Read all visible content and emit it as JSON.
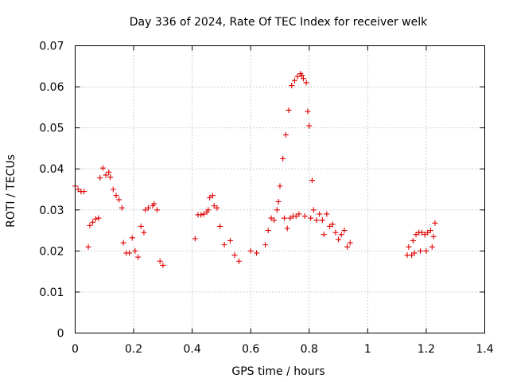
{
  "chart_data": {
    "type": "scatter",
    "title": "Day 336 of 2024, Rate Of TEC Index for receiver welk",
    "xlabel": "GPS time / hours",
    "ylabel": "ROTI / TECUs",
    "xlim": [
      0,
      1.4
    ],
    "ylim": [
      0,
      0.07
    ],
    "x_ticks": [
      "0",
      "0.2",
      "0.4",
      "0.6",
      "0.8",
      "1",
      "1.2",
      "1.4"
    ],
    "y_ticks": [
      "0",
      "0.01",
      "0.02",
      "0.03",
      "0.04",
      "0.05",
      "0.06",
      "0.07"
    ],
    "grid": true,
    "marker": "+",
    "color": "#e00000",
    "series": [
      {
        "points": [
          [
            0.0,
            0.0358
          ],
          [
            0.01,
            0.035
          ],
          [
            0.02,
            0.0345
          ],
          [
            0.03,
            0.0345
          ],
          [
            0.045,
            0.021
          ],
          [
            0.05,
            0.0262
          ],
          [
            0.06,
            0.027
          ],
          [
            0.07,
            0.0278
          ],
          [
            0.08,
            0.028
          ],
          [
            0.085,
            0.0378
          ],
          [
            0.095,
            0.0402
          ],
          [
            0.105,
            0.0385
          ],
          [
            0.115,
            0.0392
          ],
          [
            0.12,
            0.038
          ],
          [
            0.13,
            0.035
          ],
          [
            0.14,
            0.0335
          ],
          [
            0.15,
            0.0325
          ],
          [
            0.16,
            0.0305
          ],
          [
            0.165,
            0.022
          ],
          [
            0.175,
            0.0195
          ],
          [
            0.185,
            0.0195
          ],
          [
            0.195,
            0.0232
          ],
          [
            0.205,
            0.02
          ],
          [
            0.215,
            0.0185
          ],
          [
            0.225,
            0.026
          ],
          [
            0.235,
            0.0245
          ],
          [
            0.24,
            0.03
          ],
          [
            0.25,
            0.0305
          ],
          [
            0.265,
            0.031
          ],
          [
            0.27,
            0.0315
          ],
          [
            0.28,
            0.03
          ],
          [
            0.29,
            0.0175
          ],
          [
            0.3,
            0.0165
          ],
          [
            0.41,
            0.023
          ],
          [
            0.42,
            0.0288
          ],
          [
            0.43,
            0.0288
          ],
          [
            0.44,
            0.029
          ],
          [
            0.45,
            0.0295
          ],
          [
            0.455,
            0.03
          ],
          [
            0.46,
            0.033
          ],
          [
            0.47,
            0.0335
          ],
          [
            0.475,
            0.031
          ],
          [
            0.485,
            0.0305
          ],
          [
            0.495,
            0.026
          ],
          [
            0.51,
            0.0215
          ],
          [
            0.53,
            0.0225
          ],
          [
            0.545,
            0.019
          ],
          [
            0.56,
            0.0175
          ],
          [
            0.6,
            0.02
          ],
          [
            0.62,
            0.0195
          ],
          [
            0.65,
            0.0215
          ],
          [
            0.66,
            0.025
          ],
          [
            0.67,
            0.028
          ],
          [
            0.68,
            0.0275
          ],
          [
            0.69,
            0.03
          ],
          [
            0.695,
            0.032
          ],
          [
            0.7,
            0.0358
          ],
          [
            0.71,
            0.0425
          ],
          [
            0.715,
            0.028
          ],
          [
            0.72,
            0.0483
          ],
          [
            0.725,
            0.0255
          ],
          [
            0.73,
            0.0543
          ],
          [
            0.735,
            0.028
          ],
          [
            0.74,
            0.0603
          ],
          [
            0.745,
            0.0285
          ],
          [
            0.75,
            0.0615
          ],
          [
            0.755,
            0.0285
          ],
          [
            0.76,
            0.0625
          ],
          [
            0.765,
            0.029
          ],
          [
            0.77,
            0.0632
          ],
          [
            0.775,
            0.0628
          ],
          [
            0.78,
            0.062
          ],
          [
            0.785,
            0.0285
          ],
          [
            0.79,
            0.061
          ],
          [
            0.795,
            0.054
          ],
          [
            0.8,
            0.0505
          ],
          [
            0.805,
            0.028
          ],
          [
            0.81,
            0.0372
          ],
          [
            0.815,
            0.03
          ],
          [
            0.825,
            0.0275
          ],
          [
            0.835,
            0.029
          ],
          [
            0.845,
            0.0275
          ],
          [
            0.85,
            0.024
          ],
          [
            0.86,
            0.029
          ],
          [
            0.87,
            0.026
          ],
          [
            0.88,
            0.0265
          ],
          [
            0.89,
            0.0245
          ],
          [
            0.9,
            0.0228
          ],
          [
            0.91,
            0.024
          ],
          [
            0.92,
            0.025
          ],
          [
            0.93,
            0.021
          ],
          [
            0.94,
            0.022
          ],
          [
            1.14,
            0.021
          ],
          [
            1.155,
            0.0225
          ],
          [
            1.165,
            0.024
          ],
          [
            1.175,
            0.0245
          ],
          [
            1.185,
            0.0245
          ],
          [
            1.195,
            0.024
          ],
          [
            1.205,
            0.0245
          ],
          [
            1.215,
            0.025
          ],
          [
            1.225,
            0.0235
          ],
          [
            1.23,
            0.0268
          ],
          [
            1.22,
            0.021
          ],
          [
            1.2,
            0.02
          ],
          [
            1.18,
            0.02
          ],
          [
            1.16,
            0.0195
          ],
          [
            1.15,
            0.019
          ],
          [
            1.135,
            0.019
          ]
        ]
      }
    ]
  }
}
